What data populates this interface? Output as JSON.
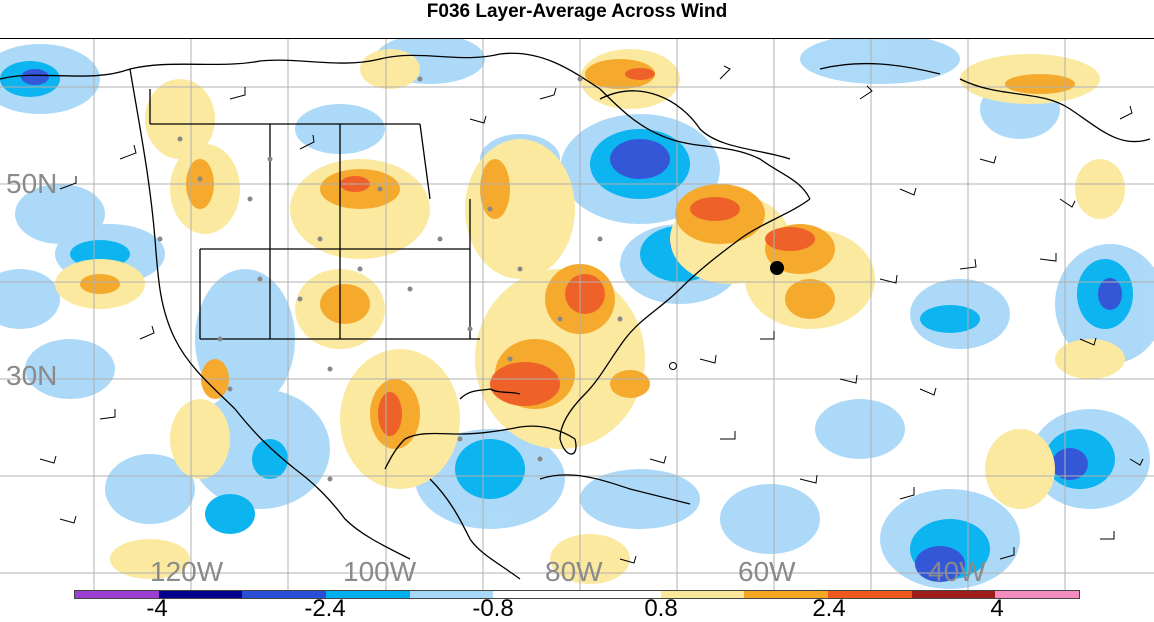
{
  "title": "F036 Layer-Average Across Wind",
  "map": {
    "longitude_labels": [
      "120W",
      "100W",
      "80W",
      "60W",
      "40W"
    ],
    "latitude_labels": [
      "50N",
      "30N"
    ],
    "label_color": "#8a8a8a",
    "grid_color": "#b0b0b0",
    "coastline_color": "#000000"
  },
  "colorbar": {
    "colors": [
      "#9b3fd0",
      "#00008c",
      "#2a4fd6",
      "#00b0f0",
      "#a8d8f8",
      "#ffffff",
      "#ffffff",
      "#fbe89a",
      "#f5a623",
      "#ee5a1e",
      "#a01c1c",
      "#f58cbf"
    ],
    "tick_labels": [
      "-4",
      "-2.4",
      "-0.8",
      "0.8",
      "2.4",
      "4"
    ]
  }
}
